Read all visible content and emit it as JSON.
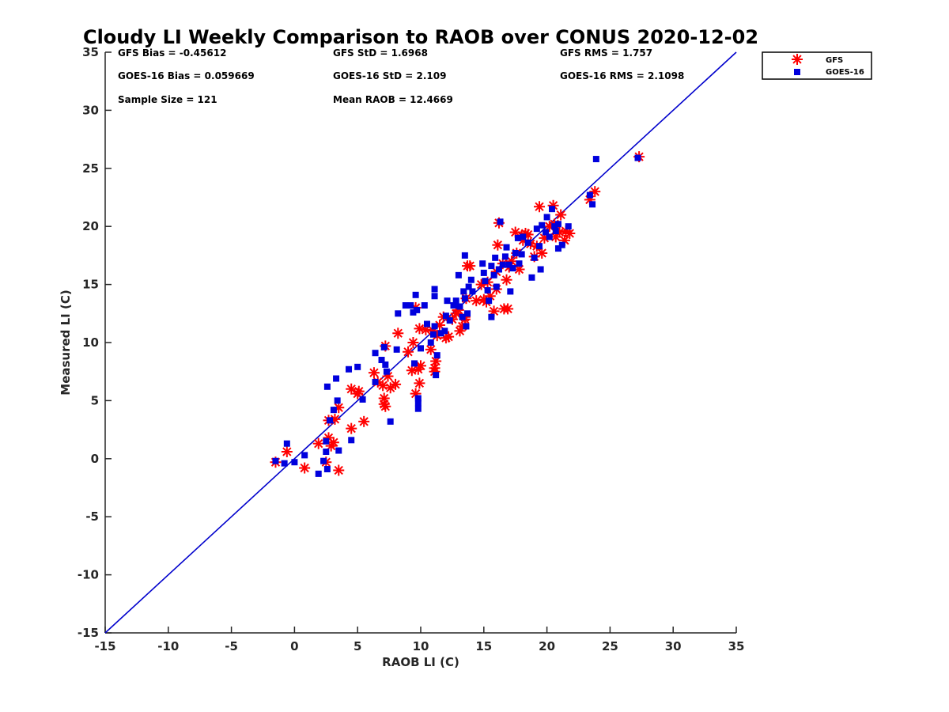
{
  "chart_data": {
    "type": "scatter",
    "title": "Cloudy LI Weekly Comparison to RAOB over CONUS 2020-12-02",
    "xlabel": "RAOB LI (C)",
    "ylabel": "Measured LI (C)",
    "xlim": [
      -15,
      35
    ],
    "ylim": [
      -15,
      35
    ],
    "xticks": [
      -15,
      -10,
      -5,
      0,
      5,
      10,
      15,
      20,
      25,
      30,
      35
    ],
    "yticks": [
      -15,
      -10,
      -5,
      0,
      5,
      10,
      15,
      20,
      25,
      30,
      35
    ],
    "xtick_labels": [
      "-15",
      "-10",
      "-5",
      "0",
      "5",
      "10",
      "15",
      "20",
      "25",
      "30",
      "35"
    ],
    "ytick_labels": [
      "-15",
      "-10",
      "-5",
      "0",
      "5",
      "10",
      "15",
      "20",
      "25",
      "30",
      "35"
    ],
    "grid": false,
    "legend_position": "top-right, outside plot",
    "stats": [
      "GFS Bias = -0.45612",
      "GFS StD = 1.6968",
      "GFS RMS = 1.757",
      "GOES-16 Bias = 0.059669",
      "GOES-16 StD = 2.109",
      "GOES-16 RMS = 2.1098",
      "Sample Size = 121",
      "Mean RAOB = 12.4669"
    ],
    "reference_line": {
      "x": [
        -15,
        35
      ],
      "y": [
        -15,
        35
      ],
      "color": "#0000cc"
    },
    "series": [
      {
        "name": "GFS",
        "marker": "asterisk",
        "color": "#ff0000",
        "points": [
          [
            -1.5,
            -0.3
          ],
          [
            -0.6,
            0.6
          ],
          [
            0.8,
            -0.8
          ],
          [
            1.9,
            1.3
          ],
          [
            2.5,
            -0.3
          ],
          [
            2.7,
            3.3
          ],
          [
            2.7,
            1.8
          ],
          [
            2.9,
            1.1
          ],
          [
            3.1,
            1.4
          ],
          [
            3.2,
            3.4
          ],
          [
            3.5,
            4.4
          ],
          [
            3.5,
            -1.0
          ],
          [
            4.5,
            6.0
          ],
          [
            4.5,
            2.6
          ],
          [
            5.0,
            5.6
          ],
          [
            5.1,
            5.8
          ],
          [
            5.5,
            3.2
          ],
          [
            6.3,
            7.4
          ],
          [
            6.6,
            6.6
          ],
          [
            7.0,
            6.3
          ],
          [
            7.1,
            5.2
          ],
          [
            7.1,
            4.7
          ],
          [
            7.2,
            4.5
          ],
          [
            7.2,
            9.7
          ],
          [
            7.4,
            7.1
          ],
          [
            7.6,
            6.1
          ],
          [
            8.0,
            6.4
          ],
          [
            8.2,
            10.8
          ],
          [
            9.0,
            9.2
          ],
          [
            9.3,
            7.6
          ],
          [
            9.4,
            10.0
          ],
          [
            9.6,
            5.6
          ],
          [
            9.6,
            13.0
          ],
          [
            9.8,
            7.7
          ],
          [
            9.9,
            11.2
          ],
          [
            9.9,
            6.5
          ],
          [
            10.0,
            8.0
          ],
          [
            10.4,
            11.1
          ],
          [
            10.8,
            9.4
          ],
          [
            11.0,
            11.0
          ],
          [
            11.1,
            7.8
          ],
          [
            11.1,
            7.5
          ],
          [
            11.2,
            8.4
          ],
          [
            11.3,
            10.6
          ],
          [
            11.5,
            11.5
          ],
          [
            11.8,
            12.2
          ],
          [
            12.0,
            10.4
          ],
          [
            12.2,
            10.5
          ],
          [
            12.5,
            12.0
          ],
          [
            12.8,
            12.5
          ],
          [
            13.0,
            12.8
          ],
          [
            13.1,
            11.0
          ],
          [
            13.3,
            11.4
          ],
          [
            13.5,
            12.0
          ],
          [
            13.5,
            12.2
          ],
          [
            13.6,
            13.8
          ],
          [
            13.7,
            16.6
          ],
          [
            13.9,
            16.6
          ],
          [
            14.4,
            13.6
          ],
          [
            14.8,
            15.0
          ],
          [
            15.0,
            13.7
          ],
          [
            15.2,
            13.5
          ],
          [
            15.3,
            15.2
          ],
          [
            15.5,
            14.0
          ],
          [
            15.8,
            12.7
          ],
          [
            16.0,
            16.1
          ],
          [
            16.0,
            14.6
          ],
          [
            16.1,
            18.4
          ],
          [
            16.2,
            20.3
          ],
          [
            16.5,
            16.8
          ],
          [
            16.6,
            12.9
          ],
          [
            16.8,
            15.4
          ],
          [
            16.9,
            12.9
          ],
          [
            17.0,
            16.5
          ],
          [
            17.2,
            17.0
          ],
          [
            17.5,
            19.5
          ],
          [
            17.6,
            17.7
          ],
          [
            17.8,
            16.3
          ],
          [
            18.0,
            19.2
          ],
          [
            18.1,
            18.8
          ],
          [
            18.3,
            19.4
          ],
          [
            18.5,
            19.3
          ],
          [
            18.7,
            18.5
          ],
          [
            19.0,
            17.4
          ],
          [
            19.2,
            18.3
          ],
          [
            19.4,
            21.7
          ],
          [
            19.6,
            17.7
          ],
          [
            19.8,
            19.0
          ],
          [
            20.2,
            20.0
          ],
          [
            20.5,
            21.8
          ],
          [
            20.6,
            20.2
          ],
          [
            20.7,
            19.1
          ],
          [
            21.0,
            19.5
          ],
          [
            21.1,
            21.0
          ],
          [
            21.4,
            18.8
          ],
          [
            21.5,
            19.6
          ],
          [
            21.8,
            19.4
          ],
          [
            23.4,
            22.3
          ],
          [
            23.8,
            23.0
          ],
          [
            27.3,
            26.0
          ]
        ]
      },
      {
        "name": "GOES-16",
        "marker": "square",
        "color": "#0000dd",
        "points": [
          [
            -1.5,
            -0.2
          ],
          [
            -0.8,
            -0.4
          ],
          [
            -0.6,
            1.3
          ],
          [
            0.0,
            -0.3
          ],
          [
            0.8,
            0.3
          ],
          [
            1.9,
            -1.3
          ],
          [
            2.3,
            -0.2
          ],
          [
            2.5,
            1.5
          ],
          [
            2.5,
            0.6
          ],
          [
            2.6,
            6.2
          ],
          [
            2.6,
            -0.9
          ],
          [
            2.8,
            3.3
          ],
          [
            3.1,
            4.2
          ],
          [
            3.3,
            6.9
          ],
          [
            3.4,
            5.0
          ],
          [
            3.5,
            0.7
          ],
          [
            4.3,
            7.7
          ],
          [
            4.5,
            1.6
          ],
          [
            5.0,
            7.9
          ],
          [
            5.4,
            5.1
          ],
          [
            6.4,
            6.6
          ],
          [
            6.4,
            9.1
          ],
          [
            6.9,
            8.5
          ],
          [
            7.1,
            9.6
          ],
          [
            7.2,
            8.1
          ],
          [
            7.3,
            7.5
          ],
          [
            7.6,
            3.2
          ],
          [
            8.1,
            9.4
          ],
          [
            8.2,
            12.5
          ],
          [
            8.8,
            13.2
          ],
          [
            9.2,
            13.2
          ],
          [
            9.4,
            12.6
          ],
          [
            9.5,
            8.2
          ],
          [
            9.6,
            14.1
          ],
          [
            9.7,
            12.8
          ],
          [
            9.8,
            4.3
          ],
          [
            9.8,
            4.8
          ],
          [
            9.8,
            5.2
          ],
          [
            10.0,
            9.5
          ],
          [
            10.3,
            13.2
          ],
          [
            10.5,
            11.6
          ],
          [
            10.8,
            10.0
          ],
          [
            11.0,
            10.7
          ],
          [
            11.1,
            14.6
          ],
          [
            11.1,
            14.0
          ],
          [
            11.1,
            11.4
          ],
          [
            11.2,
            7.2
          ],
          [
            11.3,
            8.9
          ],
          [
            11.6,
            10.8
          ],
          [
            11.9,
            11.0
          ],
          [
            12.0,
            12.3
          ],
          [
            12.1,
            13.6
          ],
          [
            12.3,
            11.9
          ],
          [
            12.6,
            13.2
          ],
          [
            12.8,
            13.6
          ],
          [
            13.0,
            15.8
          ],
          [
            13.1,
            13.1
          ],
          [
            13.3,
            12.2
          ],
          [
            13.4,
            14.4
          ],
          [
            13.5,
            13.8
          ],
          [
            13.5,
            17.5
          ],
          [
            13.6,
            11.4
          ],
          [
            13.7,
            12.5
          ],
          [
            13.8,
            14.8
          ],
          [
            14.0,
            15.4
          ],
          [
            14.1,
            14.4
          ],
          [
            14.9,
            16.8
          ],
          [
            15.0,
            16.0
          ],
          [
            15.1,
            15.3
          ],
          [
            15.3,
            14.5
          ],
          [
            15.4,
            13.6
          ],
          [
            15.6,
            16.6
          ],
          [
            15.6,
            12.2
          ],
          [
            15.8,
            15.8
          ],
          [
            15.9,
            17.3
          ],
          [
            16.0,
            14.8
          ],
          [
            16.2,
            16.3
          ],
          [
            16.3,
            20.4
          ],
          [
            16.5,
            16.7
          ],
          [
            16.7,
            17.4
          ],
          [
            16.8,
            18.2
          ],
          [
            17.0,
            16.7
          ],
          [
            17.1,
            14.4
          ],
          [
            17.3,
            16.4
          ],
          [
            17.5,
            17.7
          ],
          [
            17.7,
            19.0
          ],
          [
            17.8,
            16.8
          ],
          [
            18.0,
            17.6
          ],
          [
            18.1,
            19.1
          ],
          [
            18.5,
            18.6
          ],
          [
            18.8,
            15.6
          ],
          [
            19.0,
            17.3
          ],
          [
            19.2,
            19.8
          ],
          [
            19.4,
            18.3
          ],
          [
            19.5,
            16.3
          ],
          [
            19.6,
            20.1
          ],
          [
            19.9,
            19.5
          ],
          [
            20.0,
            20.8
          ],
          [
            20.2,
            19.1
          ],
          [
            20.4,
            21.5
          ],
          [
            20.6,
            20.0
          ],
          [
            20.7,
            19.6
          ],
          [
            20.9,
            20.2
          ],
          [
            20.9,
            18.1
          ],
          [
            21.2,
            18.4
          ],
          [
            21.7,
            20.0
          ],
          [
            23.4,
            22.7
          ],
          [
            23.6,
            21.9
          ],
          [
            23.9,
            25.8
          ],
          [
            27.2,
            25.9
          ]
        ]
      }
    ]
  }
}
